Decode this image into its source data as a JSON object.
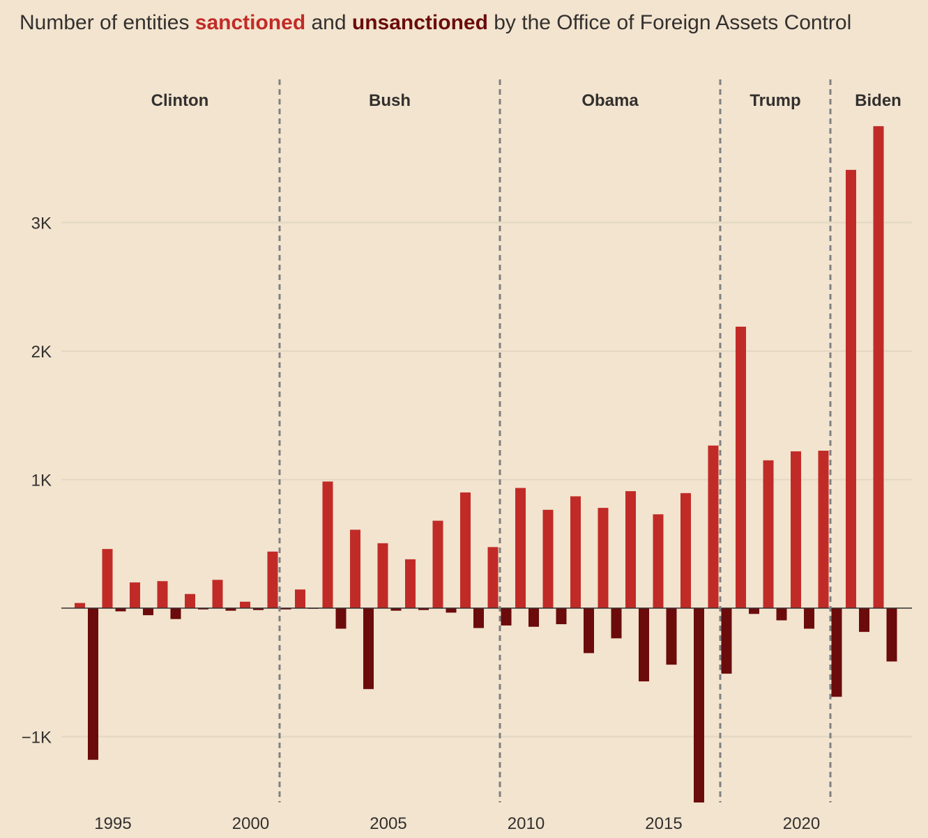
{
  "title": {
    "prefix": "Number of entities ",
    "sanctioned": "sanctioned",
    "middle": " and ",
    "unsanctioned": "unsanctioned",
    "suffix": " by the Office of Foreign Assets Control"
  },
  "colors": {
    "background": "#f2e4cf",
    "sanctioned": "#c12b27",
    "unsanctioned": "#6b0b0b",
    "grid": "#e3d6c3",
    "divider": "#808080",
    "text": "#33302e"
  },
  "chart_data": {
    "type": "bar",
    "title": "Number of entities sanctioned and unsanctioned by the Office of Foreign Assets Control",
    "xlabel": "",
    "ylabel": "",
    "ylim": [
      -1500,
      3800
    ],
    "yticks": [
      {
        "value": -1000,
        "label": "−1K"
      },
      {
        "value": 1000,
        "label": "1K"
      },
      {
        "value": 2000,
        "label": "2K"
      },
      {
        "value": 3000,
        "label": "3K"
      }
    ],
    "xticks": [
      1995,
      2000,
      2005,
      2010,
      2015,
      2020
    ],
    "grid": true,
    "legend": "inline-title",
    "periods": [
      {
        "label": "Clinton",
        "start": 1993,
        "end": 2001
      },
      {
        "label": "Bush",
        "start": 2001,
        "end": 2009
      },
      {
        "label": "Obama",
        "start": 2009,
        "end": 2017
      },
      {
        "label": "Trump",
        "start": 2017,
        "end": 2021
      },
      {
        "label": "Biden",
        "start": 2021,
        "end": 2024
      }
    ],
    "categories": [
      1994,
      1995,
      1996,
      1997,
      1998,
      1999,
      2000,
      2001,
      2002,
      2003,
      2004,
      2005,
      2006,
      2007,
      2008,
      2009,
      2010,
      2011,
      2012,
      2013,
      2014,
      2015,
      2016,
      2017,
      2018,
      2019,
      2020,
      2021,
      2022,
      2023
    ],
    "series": [
      {
        "name": "sanctioned",
        "values": [
          40,
          460,
          200,
          210,
          110,
          220,
          50,
          440,
          145,
          985,
          610,
          505,
          380,
          680,
          900,
          475,
          935,
          765,
          870,
          780,
          910,
          730,
          895,
          1265,
          2190,
          1150,
          1220,
          1225,
          3410,
          3750
        ]
      },
      {
        "name": "unsanctioned",
        "values": [
          -1180,
          -25,
          -55,
          -85,
          -10,
          -20,
          -15,
          -10,
          -5,
          -160,
          -630,
          -20,
          -15,
          -35,
          -155,
          -135,
          -145,
          -125,
          -350,
          -235,
          -570,
          -440,
          -1520,
          -510,
          -45,
          -95,
          -160,
          -690,
          -185,
          -415
        ]
      }
    ]
  }
}
